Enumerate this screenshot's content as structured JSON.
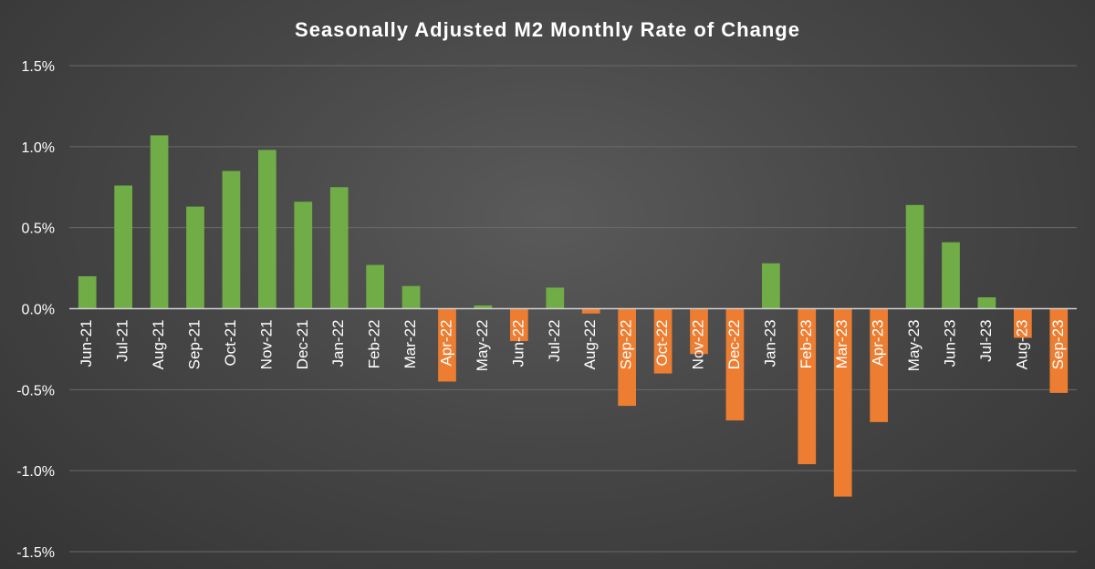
{
  "chart_data": {
    "type": "bar",
    "title": "Seasonally Adjusted M2 Monthly Rate of Change",
    "xlabel": "",
    "ylabel": "",
    "ylim": [
      -1.5,
      1.5
    ],
    "y_ticks": [
      1.5,
      1.0,
      0.5,
      0.0,
      -0.5,
      -1.0,
      -1.5
    ],
    "y_tick_labels": [
      "1.5%",
      "1.0%",
      "0.5%",
      "0.0%",
      "-0.5%",
      "-1.0%",
      "-1.5%"
    ],
    "grid": true,
    "legend": "none",
    "categories": [
      "Jun-21",
      "Jul-21",
      "Aug-21",
      "Sep-21",
      "Oct-21",
      "Nov-21",
      "Dec-21",
      "Jan-22",
      "Feb-22",
      "Mar-22",
      "Apr-22",
      "May-22",
      "Jun-22",
      "Jul-22",
      "Aug-22",
      "Sep-22",
      "Oct-22",
      "Nov-22",
      "Dec-22",
      "Jan-23",
      "Feb-23",
      "Mar-23",
      "Apr-23",
      "May-23",
      "Jun-23",
      "Jul-23",
      "Aug-23",
      "Sep-23"
    ],
    "values": [
      0.2,
      0.76,
      1.07,
      0.63,
      0.85,
      0.98,
      0.66,
      0.75,
      0.27,
      0.14,
      -0.45,
      0.02,
      -0.2,
      0.13,
      -0.03,
      -0.6,
      -0.4,
      -0.28,
      -0.69,
      0.28,
      -0.96,
      -1.16,
      -0.7,
      0.64,
      0.41,
      0.07,
      -0.18,
      -0.52
    ],
    "colors": {
      "positive": "#70ad47",
      "negative": "#ed7d31"
    }
  }
}
